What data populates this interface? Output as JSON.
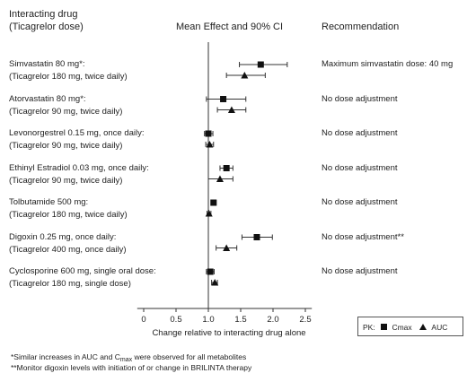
{
  "headers": {
    "drug_line1": "Interacting drug",
    "drug_line2": "(Ticagrelor dose)",
    "effect": "Mean Effect and 90% CI",
    "recommendation": "Recommendation"
  },
  "chart_data": {
    "type": "forest",
    "xlabel": "Change relative to interacting drug alone",
    "xlim": [
      -0.1,
      2.6
    ],
    "ticks": [
      0,
      0.5,
      1.0,
      1.5,
      2.0,
      2.5
    ],
    "tick_labels": [
      "0",
      "0.5",
      "1.0",
      "1.5",
      "2.0",
      "2.5"
    ],
    "reference_line": 1.0,
    "legend": {
      "prefix": "PK:",
      "cmax": "Cmax",
      "auc": "AUC"
    },
    "rows": [
      {
        "drug": "Simvastatin 80 mg*:",
        "dose": "(Ticagrelor 180 mg, twice daily)",
        "recommendation": "Maximum simvastatin dose: 40 mg",
        "cmax": {
          "mean": 1.81,
          "lo": 1.48,
          "hi": 2.22
        },
        "auc": {
          "mean": 1.56,
          "lo": 1.28,
          "hi": 1.88
        }
      },
      {
        "drug": "Atorvastatin 80 mg*:",
        "dose": "(Ticagrelor 90 mg, twice daily)",
        "recommendation": "No dose adjustment",
        "cmax": {
          "mean": 1.23,
          "lo": 0.97,
          "hi": 1.58
        },
        "auc": {
          "mean": 1.36,
          "lo": 1.14,
          "hi": 1.58
        }
      },
      {
        "drug": "Levonorgestrel 0.15 mg, once daily:",
        "dose": "(Ticagrelor 90 mg, twice daily)",
        "recommendation": "No dose adjustment",
        "cmax": {
          "mean": 1.0,
          "lo": 0.94,
          "hi": 1.07
        },
        "auc": {
          "mean": 1.02,
          "lo": 0.96,
          "hi": 1.08
        }
      },
      {
        "drug": "Ethinyl Estradiol 0.03 mg, once daily:",
        "dose": "(Ticagrelor 90 mg, twice daily)",
        "recommendation": "No dose adjustment",
        "cmax": {
          "mean": 1.28,
          "lo": 1.18,
          "hi": 1.38
        },
        "auc": {
          "mean": 1.18,
          "lo": 1.0,
          "hi": 1.38
        }
      },
      {
        "drug": "Tolbutamide 500 mg:",
        "dose": "(Ticagrelor 180 mg, twice daily)",
        "recommendation": "No dose adjustment",
        "cmax": {
          "mean": 1.08,
          "lo": 1.05,
          "hi": 1.12
        },
        "auc": {
          "mean": 1.01,
          "lo": 0.98,
          "hi": 1.04
        }
      },
      {
        "drug": "Digoxin 0.25 mg, once daily:",
        "dose": "(Ticagrelor 400 mg, once daily)",
        "recommendation": "No dose adjustment**",
        "cmax": {
          "mean": 1.75,
          "lo": 1.52,
          "hi": 1.99
        },
        "auc": {
          "mean": 1.28,
          "lo": 1.12,
          "hi": 1.44
        }
      },
      {
        "drug": "Cyclosporine 600 mg, single oral dose:",
        "dose": "(Ticagrelor 180 mg, single dose)",
        "recommendation": "No dose adjustment",
        "cmax": {
          "mean": 1.03,
          "lo": 0.97,
          "hi": 1.09
        },
        "auc": {
          "mean": 1.1,
          "lo": 1.05,
          "hi": 1.14
        }
      }
    ]
  },
  "footnotes": {
    "note1_pre": "*Similar increases in AUC and C",
    "note1_sub": "max",
    "note1_post": " were observed for all metabolites",
    "note2": "**Monitor digoxin levels with initiation of or change in BRILINTA therapy"
  }
}
